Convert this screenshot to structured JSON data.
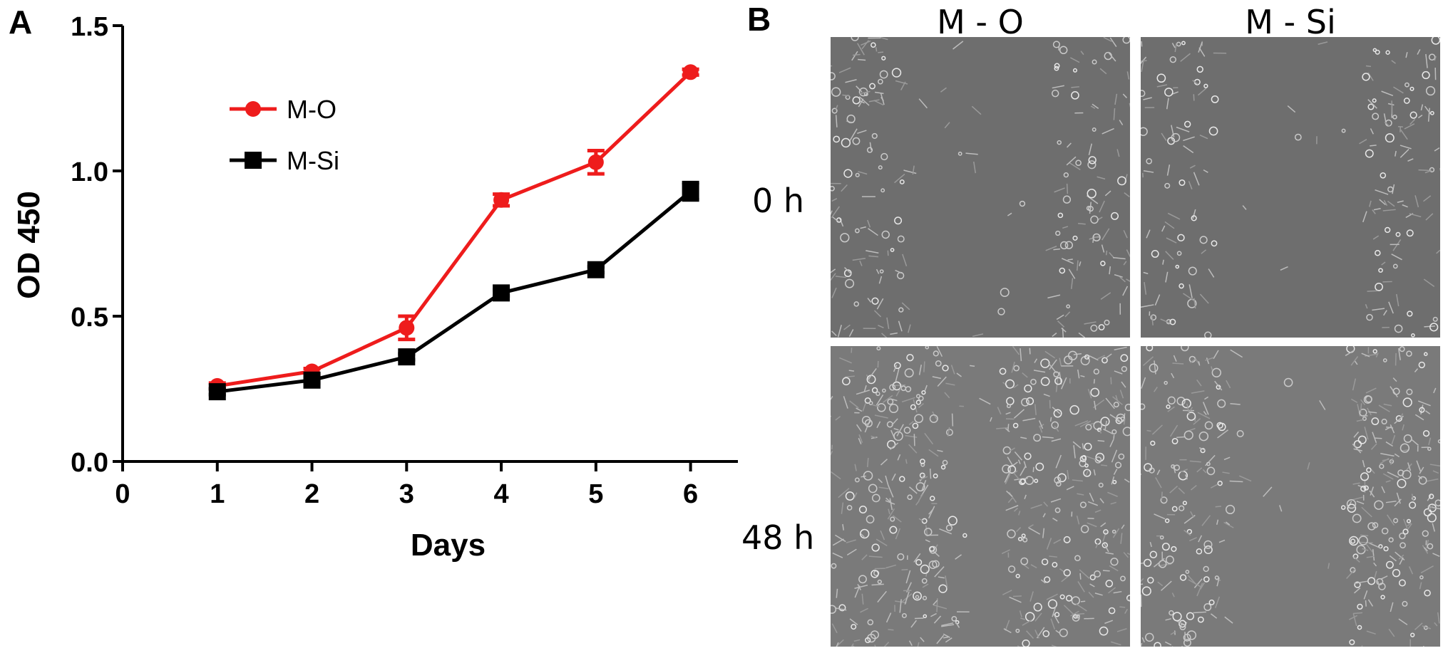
{
  "panels": {
    "a_label": "A",
    "b_label": "B"
  },
  "chart_data": {
    "type": "line",
    "x": [
      1,
      2,
      3,
      4,
      5,
      6
    ],
    "xlabel": "Days",
    "ylabel": "OD 450",
    "xlim": [
      0,
      6.5
    ],
    "ylim": [
      0,
      1.5
    ],
    "xticks": [
      "0",
      "1",
      "2",
      "3",
      "4",
      "5",
      "6"
    ],
    "yticks": [
      "0.0",
      "0.5",
      "1.0",
      "1.5"
    ],
    "grid": false,
    "legend_position": "top-left",
    "series": [
      {
        "name": "M-O",
        "color": "#ee1c1c",
        "marker": "circle",
        "values": [
          0.26,
          0.31,
          0.46,
          0.9,
          1.03,
          1.34
        ],
        "errors": [
          0.01,
          0.01,
          0.04,
          0.02,
          0.04,
          0.01
        ]
      },
      {
        "name": "M-Si",
        "color": "#000000",
        "marker": "square",
        "values": [
          0.24,
          0.28,
          0.36,
          0.58,
          0.66,
          0.93
        ],
        "errors": [
          0.01,
          0.01,
          0.01,
          0.01,
          0.01,
          0.03
        ]
      }
    ]
  },
  "micrographs": {
    "columns": [
      "M - O",
      "M - Si"
    ],
    "rows": [
      "0 h",
      "48 h"
    ],
    "cells": [
      {
        "row": "0 h",
        "column": "M - O",
        "description": "scratch wound, wide gap"
      },
      {
        "row": "0 h",
        "column": "M - Si",
        "description": "scratch wound, wide gap"
      },
      {
        "row": "48 h",
        "column": "M - O",
        "description": "gap largely closed"
      },
      {
        "row": "48 h",
        "column": "M - Si",
        "description": "gap partially closed"
      }
    ],
    "gap_fraction": [
      [
        0.5,
        0.5
      ],
      [
        0.15,
        0.4
      ]
    ]
  }
}
